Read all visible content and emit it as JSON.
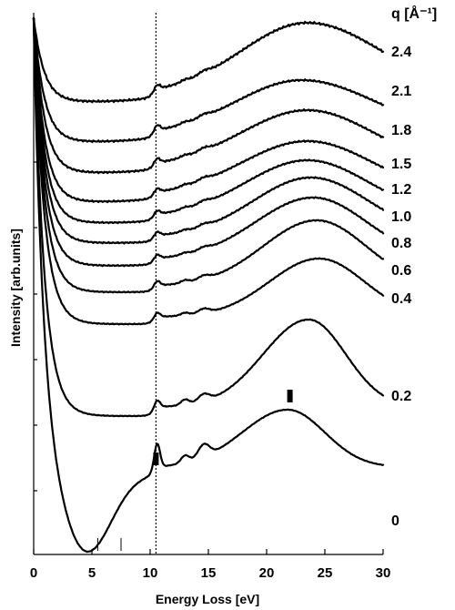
{
  "chart_data": {
    "type": "line",
    "title": "",
    "xlabel": "Energy Loss [eV]",
    "ylabel": "Intensity [arb.units]",
    "xlim": [
      0,
      30
    ],
    "x_ticks": [
      "0",
      "5",
      "10",
      "15",
      "20",
      "25",
      "30"
    ],
    "legend_title": "q [Å⁻¹]",
    "reference_line_x": 10.5,
    "markers_x": [
      10.5,
      22
    ],
    "minor_marks_x": [
      5.5,
      7.5
    ],
    "grid": false,
    "legend_placement": "right",
    "series": [
      {
        "q": "2.4"
      },
      {
        "q": "2.1"
      },
      {
        "q": "1.8"
      },
      {
        "q": "1.5"
      },
      {
        "q": "1.2"
      },
      {
        "q": "1.0"
      },
      {
        "q": "0.8"
      },
      {
        "q": "0.6"
      },
      {
        "q": "0.4"
      },
      {
        "q": "0.2"
      },
      {
        "q": "0"
      }
    ]
  }
}
